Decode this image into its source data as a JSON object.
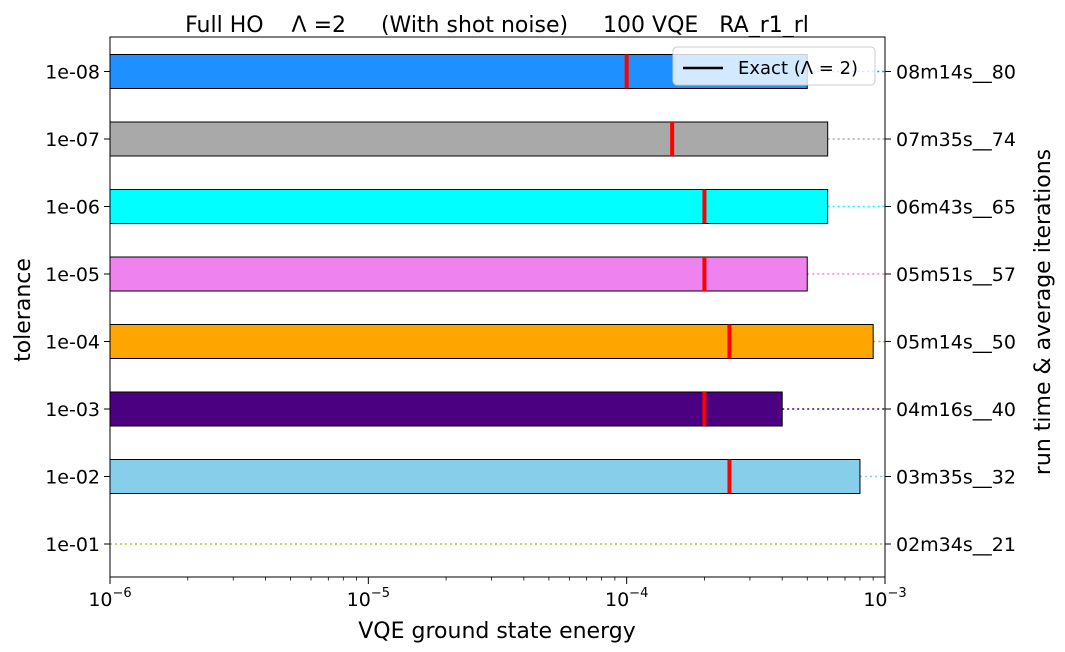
{
  "chart_data": {
    "type": "bar",
    "orientation": "horizontal",
    "title": "Full HO    Λ =2     (With shot noise)     100 VQE   RA_r1_rl",
    "xlabel": "VQE ground state energy",
    "ylabel": "tolerance",
    "ylabel_right": "run time & average iterations",
    "xscale": "log",
    "xlim": [
      1e-06,
      0.001
    ],
    "x_ticks": [
      {
        "value": 1e-06,
        "base": "10",
        "exp": "−6"
      },
      {
        "value": 1e-05,
        "base": "10",
        "exp": "−5"
      },
      {
        "value": 0.0001,
        "base": "10",
        "exp": "−4"
      },
      {
        "value": 0.001,
        "base": "10",
        "exp": "−3"
      }
    ],
    "legend": {
      "label": "Exact (Λ = 2)",
      "position": "top-right",
      "line_color": "#000000"
    },
    "median_color": "#ff0000",
    "categories": [
      "1e-01",
      "1e-02",
      "1e-03",
      "1e-04",
      "1e-05",
      "1e-06",
      "1e-07",
      "1e-08"
    ],
    "right_labels": [
      "02m34s__21",
      "03m35s__32",
      "04m16s__40",
      "05m14s__50",
      "05m51s__57",
      "06m43s__65",
      "07m35s__74",
      "08m14s__80"
    ],
    "bars": [
      {
        "min": null,
        "max": null,
        "median": null,
        "color": "#9acd32"
      },
      {
        "min": 1e-06,
        "max": 0.0008,
        "median": 0.00025,
        "color": "#87ceeb"
      },
      {
        "min": 1e-06,
        "max": 0.0004,
        "median": 0.0002,
        "color": "#4b0082"
      },
      {
        "min": 1e-06,
        "max": 0.0009,
        "median": 0.00025,
        "color": "#ffa500"
      },
      {
        "min": 1e-06,
        "max": 0.0005,
        "median": 0.0002,
        "color": "#ee82ee"
      },
      {
        "min": 1e-06,
        "max": 0.0006,
        "median": 0.0002,
        "color": "#00ffff"
      },
      {
        "min": 1e-06,
        "max": 0.0006,
        "median": 0.00015,
        "color": "#a9a9a9"
      },
      {
        "min": 1e-06,
        "max": 0.0005,
        "median": 0.0001,
        "color": "#1e90ff"
      }
    ]
  }
}
